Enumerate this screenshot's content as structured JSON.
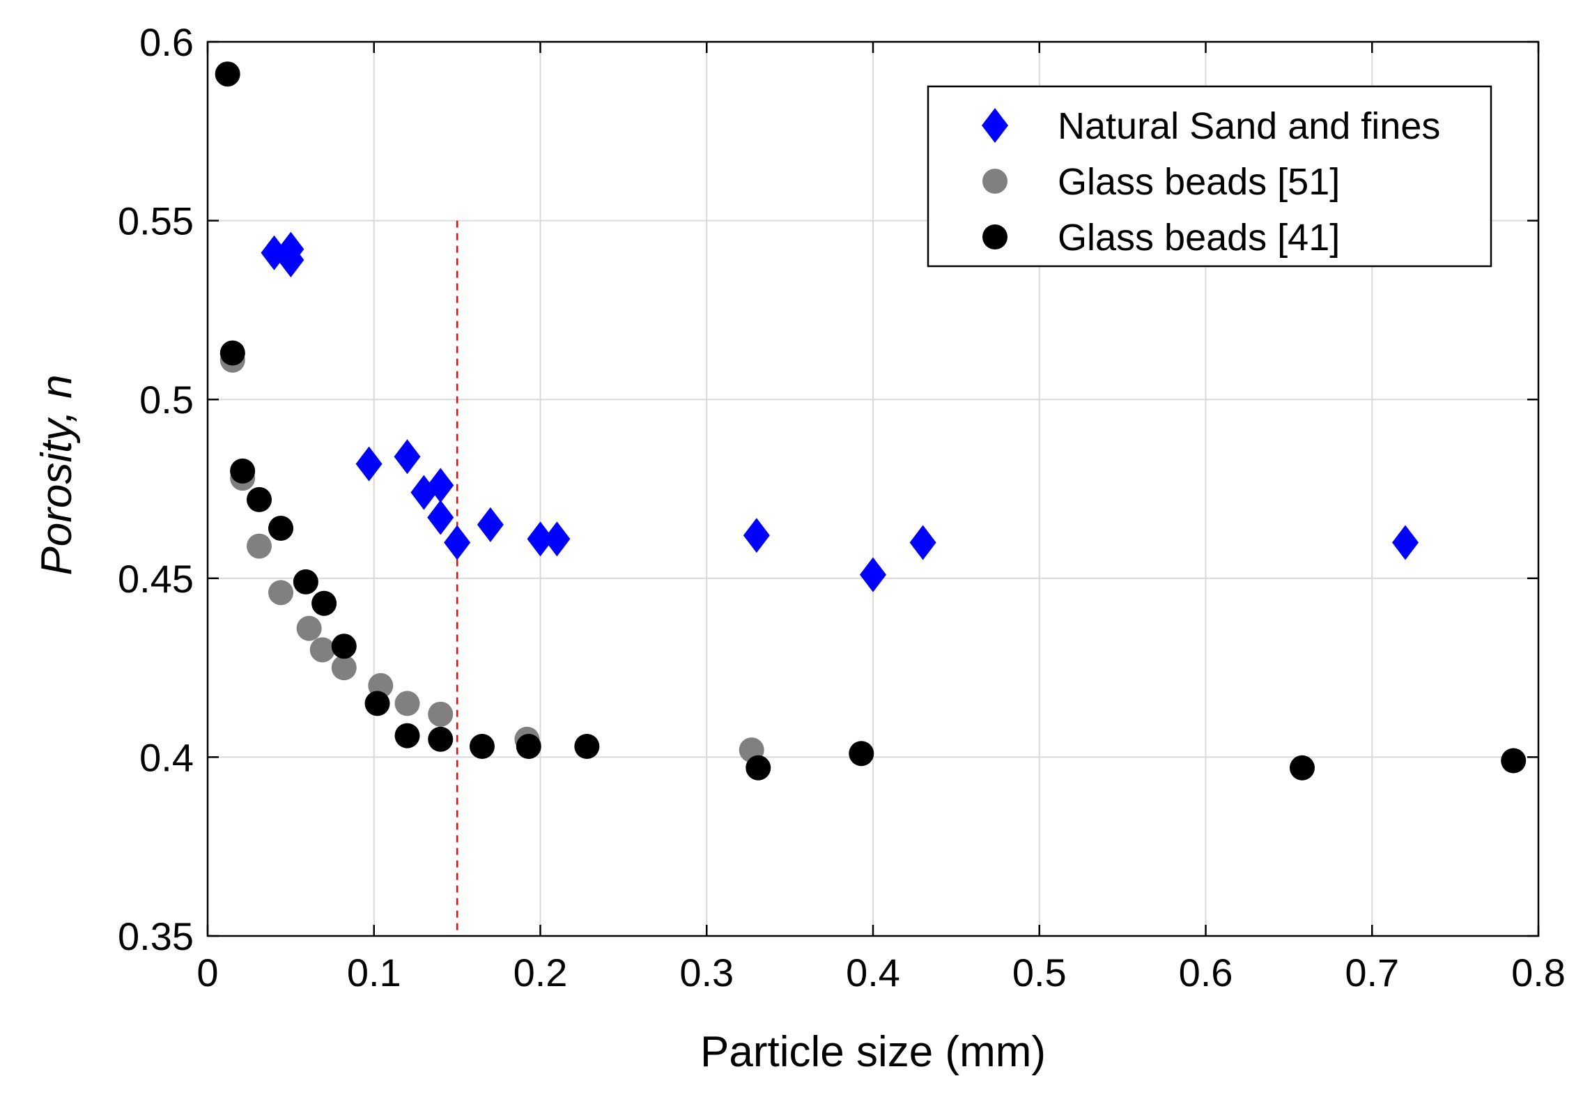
{
  "chart_data": {
    "type": "scatter",
    "title": "",
    "xlabel": "Particle size (mm)",
    "ylabel_main": "Porosity, ",
    "ylabel_var": "n",
    "xlim": [
      0,
      0.8
    ],
    "ylim": [
      0.35,
      0.6
    ],
    "xticks": [
      0,
      0.1,
      0.2,
      0.3,
      0.4,
      0.5,
      0.6,
      0.7,
      0.8
    ],
    "xtick_labels": [
      "0",
      "0.1",
      "0.2",
      "0.3",
      "0.4",
      "0.5",
      "0.6",
      "0.7",
      "0.8"
    ],
    "yticks": [
      0.35,
      0.4,
      0.45,
      0.5,
      0.55,
      0.6
    ],
    "ytick_labels": [
      "0.35",
      "0.4",
      "0.45",
      "0.5",
      "0.55",
      "0.6"
    ],
    "grid": true,
    "legend_position": "top-right",
    "reference_line": {
      "x": 0.15,
      "color": "#ff0000",
      "style": "dashed"
    },
    "series": [
      {
        "name": "Natural Sand and fines",
        "marker": "diamond",
        "color": "#0000ff",
        "points": [
          [
            0.04,
            0.541
          ],
          [
            0.05,
            0.542
          ],
          [
            0.05,
            0.539
          ],
          [
            0.097,
            0.482
          ],
          [
            0.12,
            0.484
          ],
          [
            0.13,
            0.474
          ],
          [
            0.14,
            0.476
          ],
          [
            0.14,
            0.467
          ],
          [
            0.15,
            0.46
          ],
          [
            0.17,
            0.465
          ],
          [
            0.2,
            0.461
          ],
          [
            0.21,
            0.461
          ],
          [
            0.33,
            0.462
          ],
          [
            0.4,
            0.451
          ],
          [
            0.43,
            0.46
          ],
          [
            0.72,
            0.46
          ]
        ]
      },
      {
        "name": "Glass beads [51]",
        "marker": "circle",
        "color": "#808080",
        "points": [
          [
            0.015,
            0.511
          ],
          [
            0.021,
            0.478
          ],
          [
            0.031,
            0.459
          ],
          [
            0.044,
            0.446
          ],
          [
            0.061,
            0.436
          ],
          [
            0.069,
            0.43
          ],
          [
            0.082,
            0.425
          ],
          [
            0.104,
            0.42
          ],
          [
            0.12,
            0.415
          ],
          [
            0.14,
            0.412
          ],
          [
            0.192,
            0.405
          ],
          [
            0.327,
            0.402
          ]
        ]
      },
      {
        "name": "Glass beads [41]",
        "marker": "circle",
        "color": "#000000",
        "points": [
          [
            0.012,
            0.591
          ],
          [
            0.015,
            0.513
          ],
          [
            0.021,
            0.48
          ],
          [
            0.031,
            0.472
          ],
          [
            0.044,
            0.464
          ],
          [
            0.059,
            0.449
          ],
          [
            0.07,
            0.443
          ],
          [
            0.082,
            0.431
          ],
          [
            0.102,
            0.415
          ],
          [
            0.12,
            0.406
          ],
          [
            0.14,
            0.405
          ],
          [
            0.165,
            0.403
          ],
          [
            0.193,
            0.403
          ],
          [
            0.228,
            0.403
          ],
          [
            0.331,
            0.397
          ],
          [
            0.393,
            0.401
          ],
          [
            0.658,
            0.397
          ],
          [
            0.785,
            0.399
          ]
        ]
      }
    ]
  }
}
